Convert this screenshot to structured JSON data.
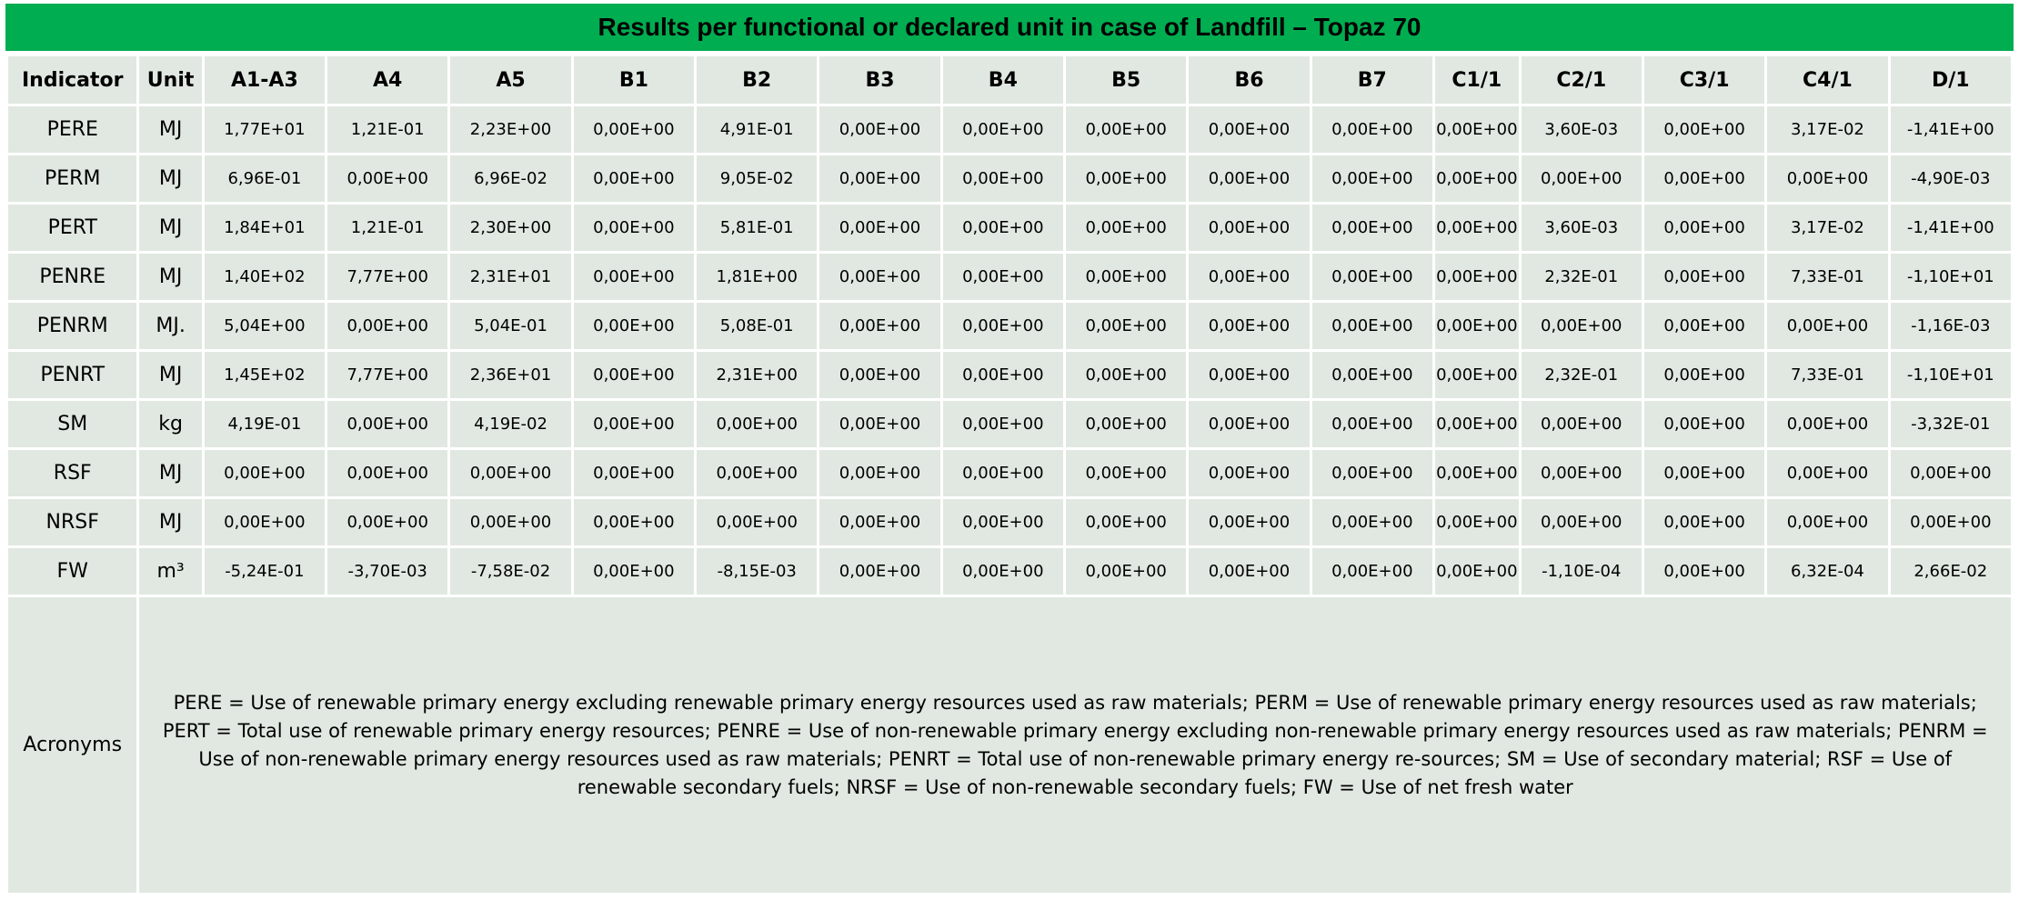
{
  "title": "Results per functional or declared unit in case of Landfill – Topaz 70",
  "headers": [
    "Indicator",
    "Unit",
    "A1-A3",
    "A4",
    "A5",
    "B1",
    "B2",
    "B3",
    "B4",
    "B5",
    "B6",
    "B7",
    "C1/1",
    "C2/1",
    "C3/1",
    "C4/1",
    "D/1"
  ],
  "rows": [
    {
      "indicator": "PERE",
      "unit": "MJ",
      "values": [
        "1,77E+01",
        "1,21E-01",
        "2,23E+00",
        "0,00E+00",
        "4,91E-01",
        "0,00E+00",
        "0,00E+00",
        "0,00E+00",
        "0,00E+00",
        "0,00E+00",
        "0,00E+00",
        "3,60E-03",
        "0,00E+00",
        "3,17E-02",
        "-1,41E+00"
      ]
    },
    {
      "indicator": "PERM",
      "unit": "MJ",
      "values": [
        "6,96E-01",
        "0,00E+00",
        "6,96E-02",
        "0,00E+00",
        "9,05E-02",
        "0,00E+00",
        "0,00E+00",
        "0,00E+00",
        "0,00E+00",
        "0,00E+00",
        "0,00E+00",
        "0,00E+00",
        "0,00E+00",
        "0,00E+00",
        "-4,90E-03"
      ]
    },
    {
      "indicator": "PERT",
      "unit": "MJ",
      "values": [
        "1,84E+01",
        "1,21E-01",
        "2,30E+00",
        "0,00E+00",
        "5,81E-01",
        "0,00E+00",
        "0,00E+00",
        "0,00E+00",
        "0,00E+00",
        "0,00E+00",
        "0,00E+00",
        "3,60E-03",
        "0,00E+00",
        "3,17E-02",
        "-1,41E+00"
      ]
    },
    {
      "indicator": "PENRE",
      "unit": "MJ",
      "values": [
        "1,40E+02",
        "7,77E+00",
        "2,31E+01",
        "0,00E+00",
        "1,81E+00",
        "0,00E+00",
        "0,00E+00",
        "0,00E+00",
        "0,00E+00",
        "0,00E+00",
        "0,00E+00",
        "2,32E-01",
        "0,00E+00",
        "7,33E-01",
        "-1,10E+01"
      ]
    },
    {
      "indicator": "PENRM",
      "unit": "MJ.",
      "values": [
        "5,04E+00",
        "0,00E+00",
        "5,04E-01",
        "0,00E+00",
        "5,08E-01",
        "0,00E+00",
        "0,00E+00",
        "0,00E+00",
        "0,00E+00",
        "0,00E+00",
        "0,00E+00",
        "0,00E+00",
        "0,00E+00",
        "0,00E+00",
        "-1,16E-03"
      ]
    },
    {
      "indicator": "PENRT",
      "unit": "MJ",
      "values": [
        "1,45E+02",
        "7,77E+00",
        "2,36E+01",
        "0,00E+00",
        "2,31E+00",
        "0,00E+00",
        "0,00E+00",
        "0,00E+00",
        "0,00E+00",
        "0,00E+00",
        "0,00E+00",
        "2,32E-01",
        "0,00E+00",
        "7,33E-01",
        "-1,10E+01"
      ]
    },
    {
      "indicator": "SM",
      "unit": "kg",
      "values": [
        "4,19E-01",
        "0,00E+00",
        "4,19E-02",
        "0,00E+00",
        "0,00E+00",
        "0,00E+00",
        "0,00E+00",
        "0,00E+00",
        "0,00E+00",
        "0,00E+00",
        "0,00E+00",
        "0,00E+00",
        "0,00E+00",
        "0,00E+00",
        "-3,32E-01"
      ]
    },
    {
      "indicator": "RSF",
      "unit": "MJ",
      "values": [
        "0,00E+00",
        "0,00E+00",
        "0,00E+00",
        "0,00E+00",
        "0,00E+00",
        "0,00E+00",
        "0,00E+00",
        "0,00E+00",
        "0,00E+00",
        "0,00E+00",
        "0,00E+00",
        "0,00E+00",
        "0,00E+00",
        "0,00E+00",
        "0,00E+00"
      ]
    },
    {
      "indicator": "NRSF",
      "unit": "MJ",
      "values": [
        "0,00E+00",
        "0,00E+00",
        "0,00E+00",
        "0,00E+00",
        "0,00E+00",
        "0,00E+00",
        "0,00E+00",
        "0,00E+00",
        "0,00E+00",
        "0,00E+00",
        "0,00E+00",
        "0,00E+00",
        "0,00E+00",
        "0,00E+00",
        "0,00E+00"
      ]
    },
    {
      "indicator": "FW",
      "unit": "m³",
      "values": [
        "-5,24E-01",
        "-3,70E-03",
        "-7,58E-02",
        "0,00E+00",
        "-8,15E-03",
        "0,00E+00",
        "0,00E+00",
        "0,00E+00",
        "0,00E+00",
        "0,00E+00",
        "0,00E+00",
        "-1,10E-04",
        "0,00E+00",
        "6,32E-04",
        "2,66E-02"
      ]
    }
  ],
  "acronyms": {
    "label": "Acronyms",
    "text": "PERE = Use of renewable primary energy excluding renewable primary energy resources used as raw materials; PERM = Use of renewable primary energy resources used as raw materials; PERT = Total use of renewable primary energy resources; PENRE = Use of non-renewable primary energy excluding non-renewable primary energy resources used as raw materials; PENRM = Use of non-renewable primary energy resources used as raw materials; PENRT = Total use of non-renewable primary energy re-sources; SM = Use of secondary material; RSF = Use of renewable secondary fuels; NRSF = Use of non-renewable secondary fuels; FW = Use of net fresh water"
  },
  "colors": {
    "title_bg": "#00ad50",
    "cell_bg": "#e1e8e1",
    "grid": "#ffffff"
  }
}
